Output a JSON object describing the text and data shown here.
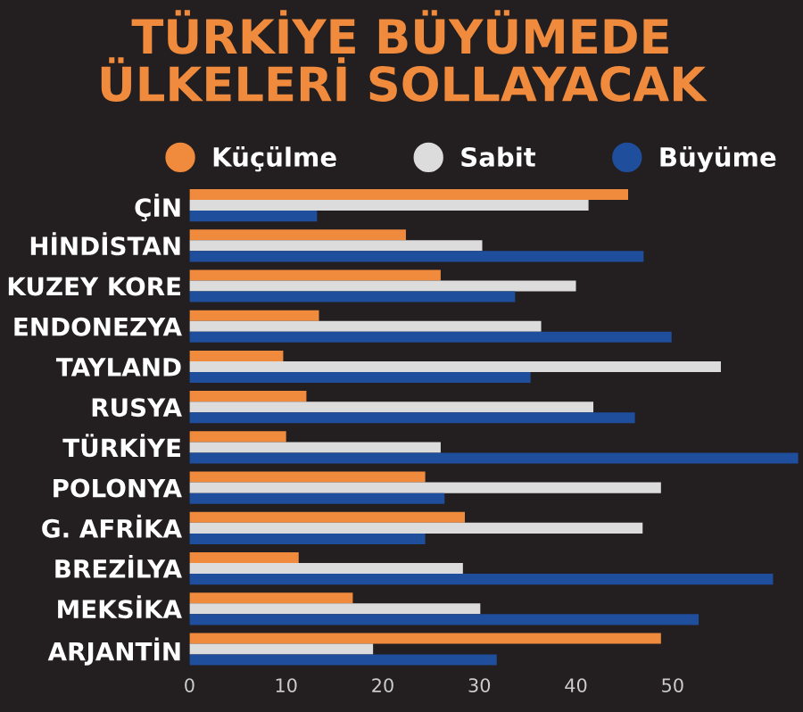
{
  "chart_data": {
    "type": "bar",
    "orientation": "horizontal",
    "title": "TÜRKİYE BÜYÜMEDE\nÜLKELERİ SOLLAYACAK",
    "categories": [
      "ÇİN",
      "HİNDİSTAN",
      "KUZEY KORE",
      "ENDONEZYA",
      "TAYLAND",
      "RUSYA",
      "TÜRKİYE",
      "POLONYA",
      "G. AFRİKA",
      "BREZİLYA",
      "MEKSİKA",
      "ARJANTİN"
    ],
    "series": [
      {
        "name": "Küçülme",
        "color": "#f08a3c",
        "values": [
          45.4,
          22.4,
          26,
          13.4,
          9.7,
          12.1,
          10,
          24.4,
          28.5,
          11.3,
          16.9,
          48.8
        ]
      },
      {
        "name": "Sabit",
        "color": "#dcdcdc",
        "values": [
          41.3,
          30.3,
          40,
          36.4,
          55,
          41.8,
          26,
          48.8,
          46.9,
          28.3,
          30.1,
          19
        ]
      },
      {
        "name": "Büyüme",
        "color": "#1f4e9c",
        "values": [
          13.2,
          47,
          33.7,
          49.9,
          35.3,
          46.1,
          63,
          26.4,
          24.4,
          60.4,
          52.7,
          31.8
        ]
      }
    ],
    "xlim": [
      0,
      63.5
    ],
    "xticks": [
      0,
      10,
      20,
      30,
      40,
      50
    ],
    "legend": "top",
    "grid": false
  }
}
